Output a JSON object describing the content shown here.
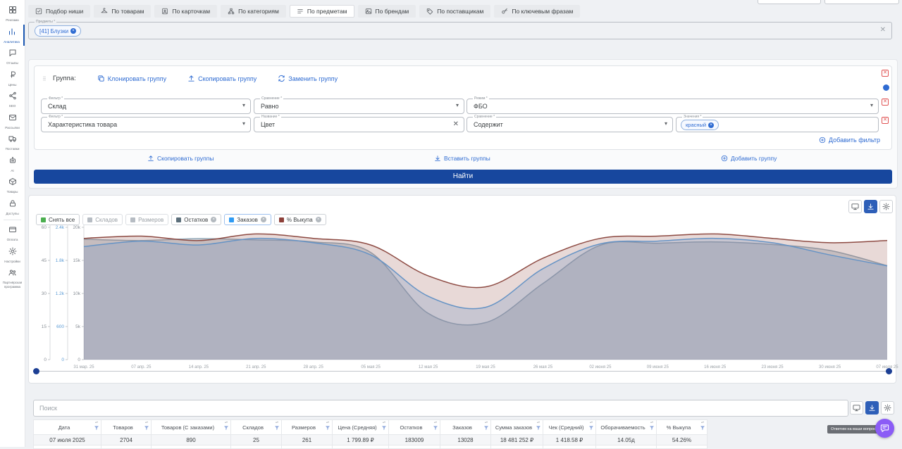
{
  "sidebar": {
    "items": [
      {
        "label": "Реклама",
        "icon": "ads-icon"
      },
      {
        "label": "Аналитика",
        "icon": "analytics-icon",
        "active": true
      },
      {
        "label": "Отзывы",
        "icon": "reviews-icon"
      },
      {
        "label": "Цены",
        "icon": "prices-icon"
      },
      {
        "label": "SEO",
        "icon": "seo-icon"
      },
      {
        "label": "Рассылки",
        "icon": "mail-icon"
      },
      {
        "label": "Поставки",
        "icon": "delivery-icon"
      },
      {
        "label": "AI",
        "icon": "ai-icon"
      },
      {
        "label": "Товары",
        "icon": "goods-icon"
      },
      {
        "label": "Доступы",
        "icon": "lock-icon"
      },
      {
        "label": "Оплата",
        "icon": "payment-icon",
        "divider": true
      },
      {
        "label": "Настройки",
        "icon": "gear-icon"
      },
      {
        "label": "Партнёрская программа",
        "icon": "partners-icon"
      }
    ]
  },
  "toolbar": {
    "buttons": [
      {
        "label": "Подбор ниши",
        "icon": "niche-check-icon"
      },
      {
        "label": "По товарам",
        "icon": "hanger-icon"
      },
      {
        "label": "По карточкам",
        "icon": "card-person-icon"
      },
      {
        "label": "По категориям",
        "icon": "category-tree-icon"
      },
      {
        "label": "По предметам",
        "icon": "list-icon",
        "active": true
      },
      {
        "label": "По брендам",
        "icon": "image-icon"
      },
      {
        "label": "По поставщикам",
        "icon": "tag-icon"
      },
      {
        "label": "По ключевым фразам",
        "icon": "key-icon"
      }
    ]
  },
  "subjects_filter": {
    "label": "Предметы *",
    "chip": "[41] Блузки"
  },
  "group_panel": {
    "title": "Группа:",
    "actions": [
      {
        "label": "Клонировать группу",
        "icon": "clone-icon"
      },
      {
        "label": "Скопировать группу",
        "icon": "upload-icon"
      },
      {
        "label": "Заменить группу",
        "icon": "replace-icon"
      }
    ],
    "fields": [
      {
        "label": "Фильтр *",
        "value": "Склад"
      },
      {
        "label": "Сравнение *",
        "value": "Равно"
      },
      {
        "label": "Режим *",
        "value": "ФБО"
      },
      {
        "label": "Фильтр *",
        "value": "Характеристика товара"
      },
      {
        "label": "Название *",
        "value": "Цвет"
      },
      {
        "label": "Сравнение *",
        "value": "Содержит"
      },
      {
        "label": "Значения *",
        "chip": "красный"
      }
    ],
    "add_filter_label": "Добавить фильтр"
  },
  "group_actions": {
    "copy_label": "Скопировать группы",
    "paste_label": "Вставить группы",
    "add_label": "Добавить группу"
  },
  "find_button_label": "Найти",
  "chart_legend": [
    {
      "label": "Снять все",
      "color": "#4caf50"
    },
    {
      "label": "Складов",
      "color": "#b6bcc3",
      "muted": true
    },
    {
      "label": "Размеров",
      "color": "#b6bcc3",
      "muted": true
    },
    {
      "label": "Остатков",
      "color": "#5c6f7b",
      "closable": true
    },
    {
      "label": "Заказов",
      "color": "#2f9bf4",
      "closable": true,
      "highlight": true
    },
    {
      "label": "% Выкупа",
      "color": "#8d4039",
      "closable": true
    }
  ],
  "chart_data": {
    "type": "line",
    "x_labels": [
      "31 мар. 25",
      "07 апр. 25",
      "14 апр. 25",
      "21 апр. 25",
      "28 апр. 25",
      "05 мая 25",
      "12 мая 25",
      "19 мая 25",
      "26 мая 25",
      "02 июня 25",
      "09 июня 25",
      "16 июня 25",
      "23 июня 25",
      "30 июня 25",
      "07 июля 25"
    ],
    "y_axes": [
      {
        "name": "% Выкупа",
        "ticks": [
          "60",
          "45",
          "30",
          "15",
          "0"
        ],
        "max": 60,
        "color": "#8a9097"
      },
      {
        "name": "Заказов",
        "ticks": [
          "2.4k",
          "1.8k",
          "1.2k",
          "600",
          "0"
        ],
        "max": 2400,
        "color": "#5b9bd5"
      },
      {
        "name": "Остатков",
        "ticks": [
          "20k",
          "15k",
          "10k",
          "5k",
          "0"
        ],
        "max": 20000,
        "color": "#8a9097"
      }
    ],
    "series": [
      {
        "name": "Остатков",
        "axis": 2,
        "stroke": "#93a9b8",
        "fill": "rgba(132,153,168,0.35)",
        "values": [
          18200,
          18000,
          18300,
          18100,
          17800,
          16200,
          7000,
          5600,
          11500,
          17300,
          17600,
          17800,
          17400,
          16500,
          14200
        ]
      },
      {
        "name": "Заказов",
        "axis": 1,
        "stroke": "#58a6e8",
        "fill": "rgba(110,170,230,0.28)",
        "values": [
          2050,
          2150,
          2080,
          2200,
          2120,
          1900,
          1150,
          950,
          1650,
          2100,
          2150,
          2200,
          2120,
          1900,
          1700
        ]
      },
      {
        "name": "% Выкупа",
        "axis": 0,
        "stroke": "#8d4a42",
        "fill": "rgba(150,82,72,0.22)",
        "values": [
          55,
          56,
          54,
          57,
          55,
          52,
          38,
          33,
          46,
          55,
          56,
          57,
          55,
          53,
          54
        ]
      }
    ],
    "grid": false,
    "legend_position": "top"
  },
  "table_search_placeholder": "Поиск",
  "table": {
    "columns": [
      "Дата",
      "Товаров",
      "Товаров (С заказами)",
      "Складов",
      "Размеров",
      "Цена (Средняя)",
      "Остатков",
      "Заказов",
      "Сумма заказов",
      "Чек (Средний)",
      "Оборачиваемость",
      "% Выкупа"
    ],
    "rows": [
      [
        "07 июля 2025",
        "2704",
        "890",
        "25",
        "261",
        "1 799.89 ₽",
        "183009",
        "13028",
        "18 481 252 ₽",
        "1 418.58 ₽",
        "14.05д",
        "54.26%"
      ]
    ]
  },
  "chat_tooltip": "Ответим на ваши вопросы"
}
